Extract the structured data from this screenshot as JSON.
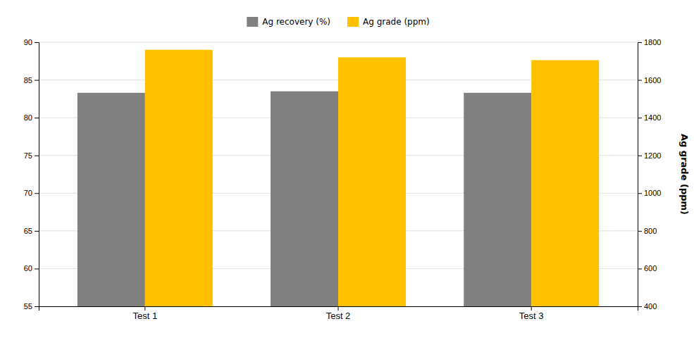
{
  "chart_data": {
    "type": "bar",
    "categories": [
      "Test 1",
      "Test 2",
      "Test 3"
    ],
    "series": [
      {
        "name": "Ag recovery (%)",
        "color": "#808080",
        "values": [
          83.3,
          83.5,
          83.3
        ]
      },
      {
        "name": "Ag grade (ppm)",
        "color": "#FFC000",
        "values": [
          1760,
          1720,
          1705
        ],
        "axis": "y2"
      }
    ],
    "ylim": [
      55,
      90
    ],
    "yticks": [
      55,
      60,
      65,
      70,
      75,
      80,
      85,
      90
    ],
    "y2lim": [
      400,
      1800
    ],
    "y2ticks": [
      400,
      600,
      800,
      1000,
      1200,
      1400,
      1600,
      1800
    ],
    "y2label": "Ag grade (ppm)",
    "grid": true,
    "legend": "top"
  }
}
